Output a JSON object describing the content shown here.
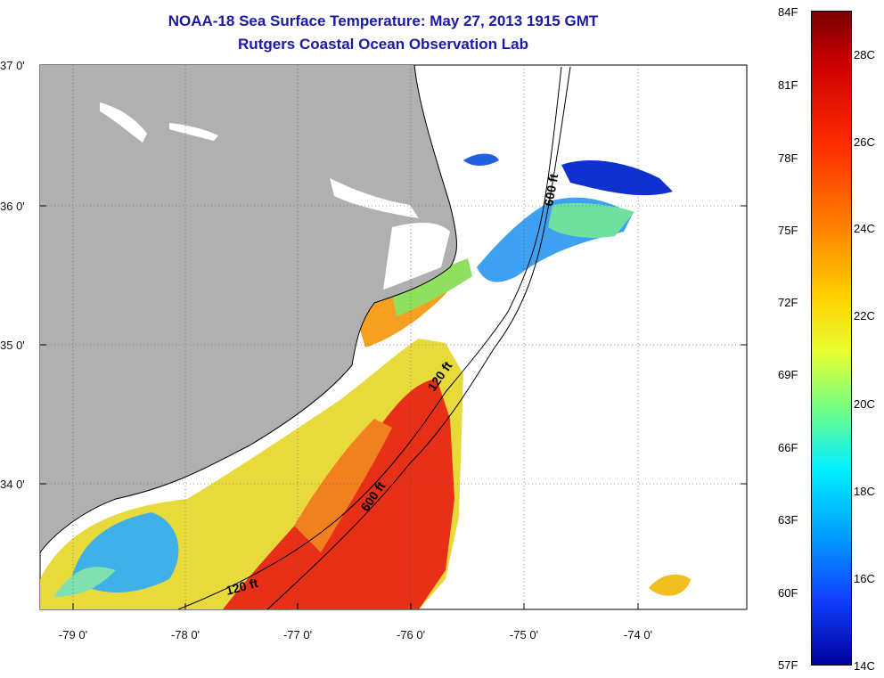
{
  "title": "NOAA-18 Sea Surface Temperature:  May 27, 2013 1915 GMT",
  "subtitle": "Rutgers Coastal Ocean Observation Lab",
  "lat_labels": [
    "37 0'",
    "36 0'",
    "35 0'",
    "34 0'"
  ],
  "lon_labels": [
    "-79 0'",
    "-78 0'",
    "-77 0'",
    "-76 0'",
    "-75 0'",
    "-74 0'"
  ],
  "contour_labels": [
    "600 ft",
    "120 ft",
    "600 ft",
    "120 ft"
  ],
  "colorbar": {
    "f_labels": [
      "84F",
      "81F",
      "78F",
      "75F",
      "72F",
      "69F",
      "66F",
      "63F",
      "60F",
      "57F"
    ],
    "c_labels": [
      "28C",
      "26C",
      "24C",
      "22C",
      "20C",
      "18C",
      "16C",
      "14C"
    ]
  },
  "colors": {
    "land": "#b0b0b0",
    "title": "#1a1aa6",
    "warm": "#e03010",
    "cool": "#2a80e0"
  }
}
